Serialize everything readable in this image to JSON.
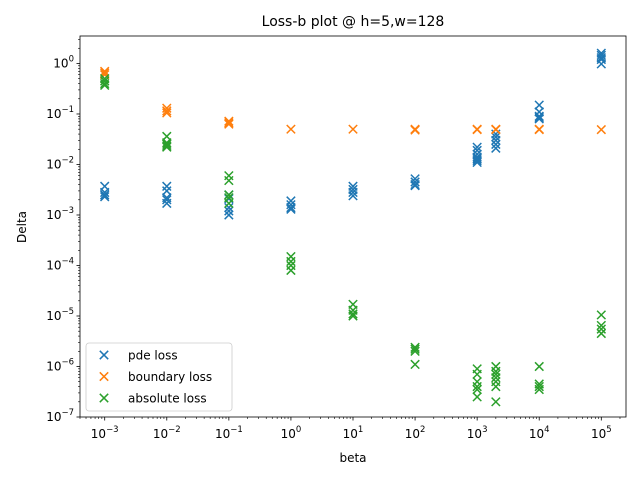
{
  "chart_data": {
    "type": "scatter",
    "title": "Loss-b plot @ h=5,w=128",
    "xlabel": "beta",
    "ylabel": "Delta",
    "xscale": "log",
    "yscale": "log",
    "xlim": [
      0.0004,
      250000
    ],
    "ylim": [
      1e-07,
      3.5
    ],
    "grid": false,
    "legend_position": "lower-left",
    "marker": "x",
    "x_ticks": [
      {
        "value": 0.001,
        "base": "10",
        "exp": "−3"
      },
      {
        "value": 0.01,
        "base": "10",
        "exp": "−2"
      },
      {
        "value": 0.1,
        "base": "10",
        "exp": "−1"
      },
      {
        "value": 1,
        "base": "10",
        "exp": "0"
      },
      {
        "value": 10,
        "base": "10",
        "exp": "1"
      },
      {
        "value": 100,
        "base": "10",
        "exp": "2"
      },
      {
        "value": 1000,
        "base": "10",
        "exp": "3"
      },
      {
        "value": 10000,
        "base": "10",
        "exp": "4"
      },
      {
        "value": 100000,
        "base": "10",
        "exp": "5"
      }
    ],
    "y_ticks": [
      {
        "value": 1e-07,
        "base": "10",
        "exp": "−7"
      },
      {
        "value": 1e-06,
        "base": "10",
        "exp": "−6"
      },
      {
        "value": 1e-05,
        "base": "10",
        "exp": "−5"
      },
      {
        "value": 0.0001,
        "base": "10",
        "exp": "−4"
      },
      {
        "value": 0.001,
        "base": "10",
        "exp": "−3"
      },
      {
        "value": 0.01,
        "base": "10",
        "exp": "−2"
      },
      {
        "value": 0.1,
        "base": "10",
        "exp": "−1"
      },
      {
        "value": 1,
        "base": "10",
        "exp": "0"
      }
    ],
    "series": [
      {
        "name": "pde loss",
        "color": "#1f77b4",
        "points": [
          [
            0.001,
            0.0037
          ],
          [
            0.001,
            0.0028
          ],
          [
            0.001,
            0.0025
          ],
          [
            0.001,
            0.0023
          ],
          [
            0.01,
            0.0037
          ],
          [
            0.01,
            0.003
          ],
          [
            0.01,
            0.0022
          ],
          [
            0.01,
            0.002
          ],
          [
            0.01,
            0.0017
          ],
          [
            0.1,
            0.0025
          ],
          [
            0.1,
            0.0021
          ],
          [
            0.1,
            0.0014
          ],
          [
            0.1,
            0.0012
          ],
          [
            0.1,
            0.001
          ],
          [
            1,
            0.0019
          ],
          [
            1,
            0.0016
          ],
          [
            1,
            0.0014
          ],
          [
            1,
            0.0013
          ],
          [
            10,
            0.0037
          ],
          [
            10,
            0.0032
          ],
          [
            10,
            0.0028
          ],
          [
            10,
            0.0024
          ],
          [
            100,
            0.0052
          ],
          [
            100,
            0.0045
          ],
          [
            100,
            0.004
          ],
          [
            100,
            0.0038
          ],
          [
            1000,
            0.022
          ],
          [
            1000,
            0.019
          ],
          [
            1000,
            0.016
          ],
          [
            1000,
            0.014
          ],
          [
            1000,
            0.013
          ],
          [
            1000,
            0.012
          ],
          [
            1000,
            0.011
          ],
          [
            2000,
            0.04
          ],
          [
            2000,
            0.035
          ],
          [
            2000,
            0.03
          ],
          [
            2000,
            0.025
          ],
          [
            2000,
            0.021
          ],
          [
            10000,
            0.15
          ],
          [
            10000,
            0.11
          ],
          [
            10000,
            0.09
          ],
          [
            10000,
            0.085
          ],
          [
            10000,
            0.08
          ],
          [
            100000,
            1.6
          ],
          [
            100000,
            1.45
          ],
          [
            100000,
            1.3
          ],
          [
            100000,
            1.2
          ],
          [
            100000,
            0.98
          ]
        ]
      },
      {
        "name": "boundary loss",
        "color": "#ff7f0e",
        "points": [
          [
            0.001,
            0.7
          ],
          [
            0.001,
            0.65
          ],
          [
            0.001,
            0.6
          ],
          [
            0.01,
            0.13
          ],
          [
            0.01,
            0.115
          ],
          [
            0.01,
            0.105
          ],
          [
            0.1,
            0.072
          ],
          [
            0.1,
            0.067
          ],
          [
            0.1,
            0.063
          ],
          [
            1,
            0.05
          ],
          [
            10,
            0.05
          ],
          [
            100,
            0.05
          ],
          [
            100,
            0.048
          ],
          [
            1000,
            0.05
          ],
          [
            1000,
            0.049
          ],
          [
            2000,
            0.05
          ],
          [
            2000,
            0.049
          ],
          [
            10000,
            0.05
          ],
          [
            10000,
            0.049
          ],
          [
            100000,
            0.049
          ]
        ]
      },
      {
        "name": "absolute loss",
        "color": "#2ca02c",
        "points": [
          [
            0.001,
            0.5
          ],
          [
            0.001,
            0.45
          ],
          [
            0.001,
            0.4
          ],
          [
            0.001,
            0.37
          ],
          [
            0.01,
            0.036
          ],
          [
            0.01,
            0.027
          ],
          [
            0.01,
            0.025
          ],
          [
            0.01,
            0.023
          ],
          [
            0.01,
            0.022
          ],
          [
            0.1,
            0.006
          ],
          [
            0.1,
            0.0048
          ],
          [
            0.1,
            0.0025
          ],
          [
            0.1,
            0.0022
          ],
          [
            0.1,
            0.0017
          ],
          [
            1,
            0.00015
          ],
          [
            1,
            0.00012
          ],
          [
            1,
            0.0001
          ],
          [
            1,
            8e-05
          ],
          [
            10,
            1.7e-05
          ],
          [
            10,
            1.3e-05
          ],
          [
            10,
            1.1e-05
          ],
          [
            10,
            1e-05
          ],
          [
            100,
            2.4e-06
          ],
          [
            100,
            2.2e-06
          ],
          [
            100,
            2e-06
          ],
          [
            100,
            1.1e-06
          ],
          [
            1000,
            9e-07
          ],
          [
            1000,
            7e-07
          ],
          [
            1000,
            5e-07
          ],
          [
            1000,
            4e-07
          ],
          [
            1000,
            3.5e-07
          ],
          [
            1000,
            2.5e-07
          ],
          [
            2000,
            1e-06
          ],
          [
            2000,
            8e-07
          ],
          [
            2000,
            7e-07
          ],
          [
            2000,
            6e-07
          ],
          [
            2000,
            5e-07
          ],
          [
            2000,
            4e-07
          ],
          [
            2000,
            2e-07
          ],
          [
            10000,
            1e-06
          ],
          [
            10000,
            4.5e-07
          ],
          [
            10000,
            4e-07
          ],
          [
            10000,
            3.5e-07
          ],
          [
            100000,
            1.05e-05
          ],
          [
            100000,
            6.5e-06
          ],
          [
            100000,
            5.5e-06
          ],
          [
            100000,
            4.5e-06
          ]
        ]
      }
    ]
  }
}
